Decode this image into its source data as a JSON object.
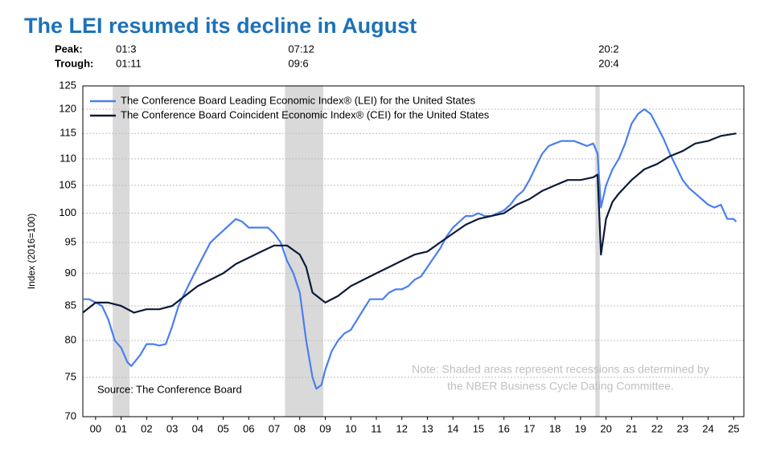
{
  "chart_data": {
    "type": "line",
    "title": "The LEI resumed its decline in August",
    "peak_label": "Peak:",
    "trough_label": "Trough:",
    "recessions": [
      {
        "peak": "01:3",
        "trough": "01:11",
        "start": 2001.17,
        "end": 2001.83
      },
      {
        "peak": "07:12",
        "trough": "09:6",
        "start": 2007.92,
        "end": 2009.42
      },
      {
        "peak": "20:2",
        "trough": "20:4",
        "start": 2020.08,
        "end": 2020.25
      }
    ],
    "recession_color": "#d9d9d9",
    "ylabel": "Index (2016=100)",
    "log_scale": true,
    "grid": true,
    "xlim": [
      2000,
      2025.9
    ],
    "ylim": [
      70,
      125
    ],
    "yticks": [
      70,
      75,
      80,
      85,
      90,
      95,
      100,
      105,
      110,
      115,
      120,
      125
    ],
    "xticks": [
      {
        "value": 2000.5,
        "label": "00"
      },
      {
        "value": 2001.5,
        "label": "01"
      },
      {
        "value": 2002.5,
        "label": "02"
      },
      {
        "value": 2003.5,
        "label": "03"
      },
      {
        "value": 2004.5,
        "label": "04"
      },
      {
        "value": 2005.5,
        "label": "05"
      },
      {
        "value": 2006.5,
        "label": "06"
      },
      {
        "value": 2007.5,
        "label": "07"
      },
      {
        "value": 2008.5,
        "label": "08"
      },
      {
        "value": 2009.5,
        "label": "09"
      },
      {
        "value": 2010.5,
        "label": "10"
      },
      {
        "value": 2011.5,
        "label": "11"
      },
      {
        "value": 2012.5,
        "label": "12"
      },
      {
        "value": 2013.5,
        "label": "13"
      },
      {
        "value": 2014.5,
        "label": "14"
      },
      {
        "value": 2015.5,
        "label": "15"
      },
      {
        "value": 2016.5,
        "label": "16"
      },
      {
        "value": 2017.5,
        "label": "17"
      },
      {
        "value": 2018.5,
        "label": "18"
      },
      {
        "value": 2019.5,
        "label": "19"
      },
      {
        "value": 2020.5,
        "label": "20"
      },
      {
        "value": 2021.5,
        "label": "21"
      },
      {
        "value": 2022.5,
        "label": "22"
      },
      {
        "value": 2023.5,
        "label": "23"
      },
      {
        "value": 2024.5,
        "label": "24"
      },
      {
        "value": 2025.5,
        "label": "25"
      }
    ],
    "legend": "top-left",
    "source": "Source: The Conference Board",
    "note": [
      "Note: Shaded areas represent recessions as determined by",
      "the NBER Business Cycle Dating Committee."
    ],
    "series": [
      {
        "name": "The Conference Board Leading Economic Index® (LEI) for the United States",
        "color": "#4a7ff0",
        "x": [
          2000.0,
          2000.25,
          2000.5,
          2000.75,
          2001.0,
          2001.25,
          2001.5,
          2001.75,
          2001.9,
          2002.25,
          2002.5,
          2002.75,
          2003.0,
          2003.25,
          2003.5,
          2003.75,
          2004.0,
          2004.25,
          2004.5,
          2004.75,
          2005.0,
          2005.25,
          2005.5,
          2005.75,
          2006.0,
          2006.25,
          2006.5,
          2006.75,
          2007.0,
          2007.25,
          2007.5,
          2007.75,
          2008.0,
          2008.25,
          2008.5,
          2008.75,
          2009.0,
          2009.15,
          2009.35,
          2009.5,
          2009.75,
          2010.0,
          2010.25,
          2010.5,
          2010.75,
          2011.0,
          2011.25,
          2011.5,
          2011.75,
          2012.0,
          2012.25,
          2012.5,
          2012.75,
          2013.0,
          2013.25,
          2013.5,
          2013.75,
          2014.0,
          2014.25,
          2014.5,
          2014.75,
          2015.0,
          2015.25,
          2015.5,
          2015.75,
          2016.0,
          2016.25,
          2016.5,
          2016.75,
          2017.0,
          2017.25,
          2017.5,
          2017.75,
          2018.0,
          2018.25,
          2018.5,
          2018.75,
          2019.0,
          2019.25,
          2019.5,
          2019.75,
          2020.0,
          2020.17,
          2020.3,
          2020.5,
          2020.75,
          2021.0,
          2021.25,
          2021.5,
          2021.75,
          2022.0,
          2022.25,
          2022.5,
          2022.75,
          2023.0,
          2023.25,
          2023.5,
          2023.75,
          2024.0,
          2024.25,
          2024.5,
          2024.75,
          2025.0,
          2025.25,
          2025.5,
          2025.6
        ],
        "values": [
          86,
          86,
          85.5,
          85,
          83,
          80,
          79,
          77,
          76.5,
          78,
          79.5,
          79.5,
          79.3,
          79.5,
          82,
          85,
          87,
          89,
          91,
          93,
          95,
          96,
          97,
          98,
          99,
          98.5,
          97.5,
          97.5,
          97.5,
          97.5,
          96.5,
          95,
          92,
          90,
          87,
          80,
          75,
          73.5,
          74,
          76,
          78.5,
          80,
          81,
          81.5,
          83,
          84.5,
          86,
          86,
          86,
          87,
          87.5,
          87.5,
          88,
          89,
          89.5,
          91,
          92.5,
          94,
          96,
          97.5,
          98.5,
          99.5,
          99.5,
          100,
          99.5,
          99.5,
          100,
          100.5,
          101.5,
          103,
          104,
          106,
          108.5,
          111,
          112.5,
          113,
          113.5,
          113.5,
          113.5,
          113,
          112.5,
          113,
          111,
          101,
          105,
          108,
          110,
          113,
          117,
          119,
          120,
          119,
          116.5,
          114,
          111,
          108.5,
          106,
          104.5,
          103.5,
          102.5,
          101.5,
          101,
          101.5,
          99,
          99,
          98.5
        ]
      },
      {
        "name": "The Conference Board Coincident Economic Index® (CEI) for the United States",
        "color": "#0c1a3a",
        "x": [
          2000.0,
          2000.5,
          2001.0,
          2001.5,
          2002.0,
          2002.5,
          2003.0,
          2003.5,
          2004.0,
          2004.5,
          2005.0,
          2005.5,
          2006.0,
          2006.5,
          2007.0,
          2007.5,
          2008.0,
          2008.5,
          2008.75,
          2009.0,
          2009.5,
          2010.0,
          2010.5,
          2011.0,
          2011.5,
          2012.0,
          2012.5,
          2013.0,
          2013.5,
          2014.0,
          2014.5,
          2015.0,
          2015.5,
          2016.0,
          2016.5,
          2017.0,
          2017.5,
          2018.0,
          2018.5,
          2019.0,
          2019.5,
          2020.0,
          2020.17,
          2020.3,
          2020.5,
          2020.75,
          2021.0,
          2021.5,
          2022.0,
          2022.5,
          2023.0,
          2023.5,
          2024.0,
          2024.5,
          2025.0,
          2025.6
        ],
        "values": [
          84,
          85.5,
          85.5,
          85,
          84,
          84.5,
          84.5,
          85,
          86.5,
          88,
          89,
          90,
          91.5,
          92.5,
          93.5,
          94.5,
          94.5,
          93,
          91,
          87,
          85.5,
          86.5,
          88,
          89,
          90,
          91,
          92,
          93,
          93.5,
          95,
          96.5,
          98,
          99,
          99.5,
          100,
          101.5,
          102.5,
          104,
          105,
          106,
          106,
          106.5,
          107,
          93,
          99,
          102,
          103.5,
          106,
          108,
          109,
          110.5,
          111.5,
          113,
          113.5,
          114.5,
          115
        ]
      }
    ]
  }
}
